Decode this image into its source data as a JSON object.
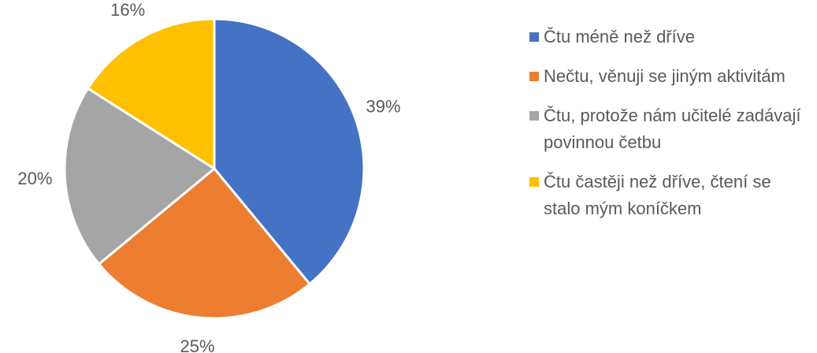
{
  "chart_data": {
    "type": "pie",
    "categories": [
      "Čtu méně než dříve",
      "Nečtu, věnuji se jiným aktivitám",
      "Čtu, protože nám učitelé zadávají povinnou četbu",
      "Čtu častěji než dříve, čtení se stalo mým koníčkem"
    ],
    "values": [
      39,
      25,
      20,
      16
    ],
    "value_labels": [
      "39%",
      "25%",
      "20%",
      "16%"
    ],
    "colors": [
      "#4472c4",
      "#ed7d31",
      "#a5a5a5",
      "#ffc000"
    ]
  }
}
